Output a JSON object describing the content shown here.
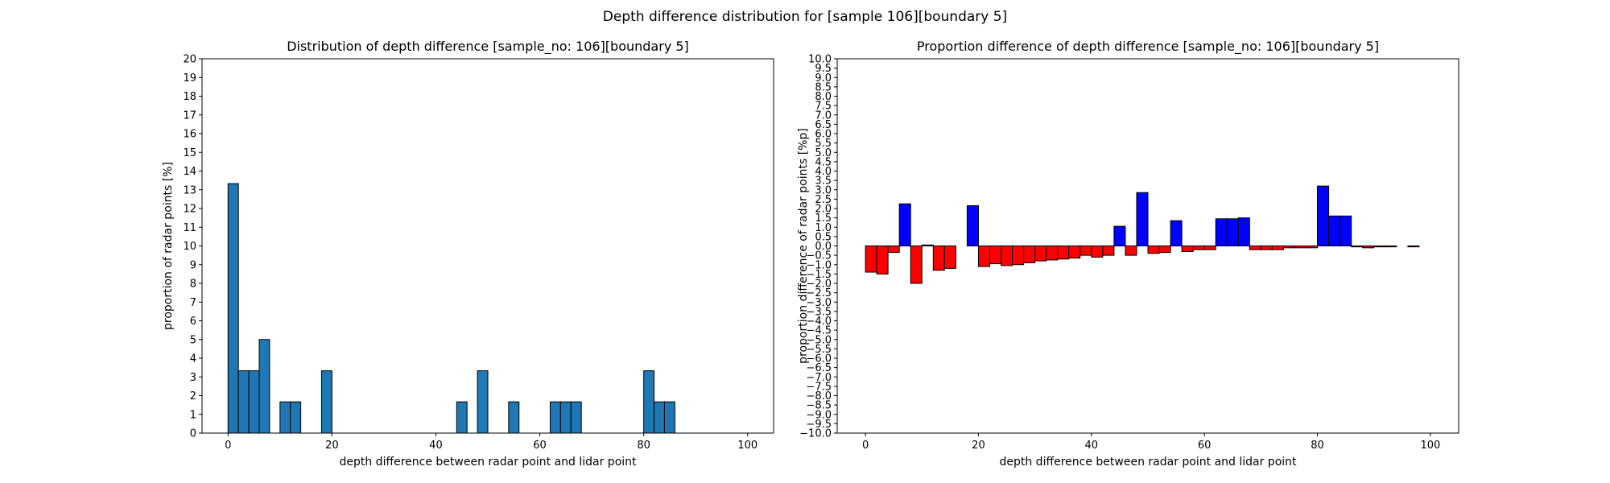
{
  "figure": {
    "suptitle": "Depth difference distribution for [sample 106][boundary 5]"
  },
  "colors": {
    "hist": "#1f77b4",
    "positive": "#0000ff",
    "negative": "#ff0000",
    "edge": "#000000"
  },
  "chart_data": [
    {
      "type": "bar",
      "title": "Distribution of depth difference [sample_no: 106][boundary 5]",
      "xlabel": "depth difference between radar point and lidar point",
      "ylabel": "proportion of radar points [%]",
      "xlim": [
        -5,
        105
      ],
      "ylim": [
        0,
        20
      ],
      "xticks": [
        0,
        20,
        40,
        60,
        80,
        100
      ],
      "yticks": [
        0,
        1,
        2,
        3,
        4,
        5,
        6,
        7,
        8,
        9,
        10,
        11,
        12,
        13,
        14,
        15,
        16,
        17,
        18,
        19,
        20
      ],
      "bin_width": 2,
      "bin_start": 0,
      "values": [
        13.33,
        3.33,
        3.33,
        5.0,
        0,
        1.67,
        1.67,
        0,
        0,
        3.33,
        0,
        0,
        0,
        0,
        0,
        0,
        0,
        0,
        0,
        0,
        0,
        0,
        1.67,
        0,
        3.33,
        0,
        0,
        1.67,
        0,
        0,
        0,
        1.67,
        1.67,
        1.67,
        0,
        0,
        0,
        0,
        0,
        0,
        3.33,
        1.67,
        1.67,
        0,
        0,
        0,
        0,
        0,
        0,
        0
      ]
    },
    {
      "type": "bar",
      "title": "Proportion difference of depth difference [sample_no: 106][boundary 5]",
      "xlabel": "depth difference between radar point and lidar point",
      "ylabel": "proportion difference of radar points [%p]",
      "xlim": [
        -5,
        105
      ],
      "ylim": [
        -10,
        10
      ],
      "xticks": [
        0,
        20,
        40,
        60,
        80,
        100
      ],
      "yticks": [
        -10.0,
        -9.5,
        -9.0,
        -8.5,
        -8.0,
        -7.5,
        -7.0,
        -6.5,
        -6.0,
        -5.5,
        -5.0,
        -4.5,
        -4.0,
        -3.5,
        -3.0,
        -2.5,
        -2.0,
        -1.5,
        -1.0,
        -0.5,
        0.0,
        0.5,
        1.0,
        1.5,
        2.0,
        2.5,
        3.0,
        3.5,
        4.0,
        4.5,
        5.0,
        5.5,
        6.0,
        6.5,
        7.0,
        7.5,
        8.0,
        8.5,
        9.0,
        9.5,
        10.0
      ],
      "bin_width": 2,
      "bin_start": 0,
      "values": [
        -1.4,
        -1.5,
        -0.35,
        2.25,
        -2.0,
        0.05,
        -1.3,
        -1.2,
        0,
        2.15,
        -1.1,
        -0.95,
        -1.05,
        -1.0,
        -0.9,
        -0.8,
        -0.75,
        -0.7,
        -0.65,
        -0.5,
        -0.6,
        -0.5,
        1.05,
        -0.5,
        2.85,
        -0.4,
        -0.35,
        1.35,
        -0.3,
        -0.2,
        -0.2,
        1.45,
        1.45,
        1.5,
        -0.2,
        -0.2,
        -0.2,
        -0.1,
        -0.1,
        -0.1,
        3.2,
        1.6,
        1.6,
        -0.05,
        -0.1,
        -0.05,
        -0.05,
        0,
        -0.05,
        0
      ]
    }
  ]
}
